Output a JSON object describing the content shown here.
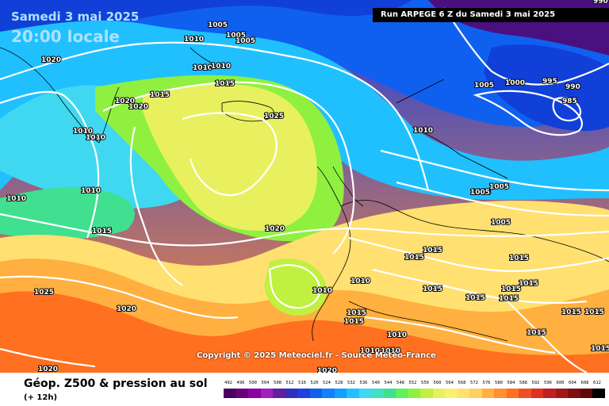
{
  "header": {
    "date": "Samedi 3 mai 2025",
    "time_local": "20:00 locale",
    "run_banner": "Run ARPEGE 6 Z du Samedi 3 mai 2025"
  },
  "copyright": "Copyright © 2025 Meteociel.fr - Source Météo-France",
  "footer": {
    "title": "Géop. Z500 & pression au sol",
    "subtitle": "(+ 12h)"
  },
  "scale": {
    "values": [
      "492",
      "496",
      "500",
      "504",
      "508",
      "512",
      "516",
      "520",
      "524",
      "528",
      "532",
      "536",
      "540",
      "544",
      "548",
      "552",
      "556",
      "560",
      "564",
      "568",
      "572",
      "576",
      "580",
      "584",
      "588",
      "592",
      "596",
      "600",
      "604",
      "608",
      "612"
    ],
    "colors": [
      "#4a0060",
      "#6a0080",
      "#8a00a0",
      "#a020c0",
      "#6020a0",
      "#3030c0",
      "#2040e0",
      "#1060f0",
      "#1080ff",
      "#10a0ff",
      "#20c0ff",
      "#40d8f0",
      "#40e0c0",
      "#40e090",
      "#60f060",
      "#90f040",
      "#c0f040",
      "#e8f060",
      "#f8f070",
      "#ffe070",
      "#ffd060",
      "#ffb040",
      "#ff9030",
      "#ff7020",
      "#f05020",
      "#e03020",
      "#c02020",
      "#a01818",
      "#801010",
      "#600808",
      "#000000"
    ]
  },
  "isobars": [
    "1005",
    "1005",
    "1005",
    "1020",
    "1010",
    "1010",
    "1010",
    "1015",
    "1020",
    "1020",
    "1015",
    "1025",
    "1010",
    "1010",
    "1010",
    "1010",
    "1015",
    "1020",
    "1005",
    "995",
    "990",
    "985",
    "1000",
    "1005",
    "1010",
    "1005",
    "1005",
    "1005",
    "1015",
    "1015",
    "1015",
    "1020",
    "1010",
    "1010",
    "1015",
    "1015",
    "1015",
    "1015",
    "1015",
    "1015",
    "1015",
    "1015",
    "1025",
    "1020",
    "1015",
    "1010",
    "1010",
    "1010",
    "1015",
    "1015",
    "990",
    "1020"
  ]
}
